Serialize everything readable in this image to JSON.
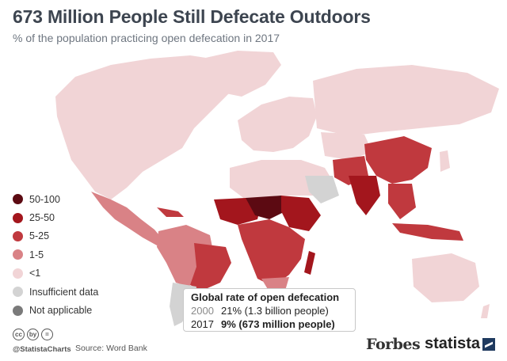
{
  "header": {
    "title": "673 Million People Still Defecate Outdoors",
    "subtitle": "% of the population practicing open defecation in 2017"
  },
  "legend": [
    {
      "label": "50-100",
      "color": "#5c0a12"
    },
    {
      "label": "25-50",
      "color": "#a3161d"
    },
    {
      "label": "5-25",
      "color": "#c0393e"
    },
    {
      "label": "1-5",
      "color": "#d98286"
    },
    {
      "label": "<1",
      "color": "#f1d4d6"
    },
    {
      "label": "Insufficient data",
      "color": "#d3d3d3"
    },
    {
      "label": "Not applicable",
      "color": "#7a7a7a"
    }
  ],
  "global_rate": {
    "title": "Global rate of open defecation",
    "rows": [
      {
        "year": "2000",
        "value": "21% (1.3 billion people)"
      },
      {
        "year": "2017",
        "value": "9% (673 million people)"
      }
    ]
  },
  "footer": {
    "license_icons": [
      "cc",
      "by",
      "="
    ],
    "handle": "@StatistaCharts",
    "source": "Source: Word Bank",
    "forbes": "Forbes",
    "statista": "statista"
  }
}
